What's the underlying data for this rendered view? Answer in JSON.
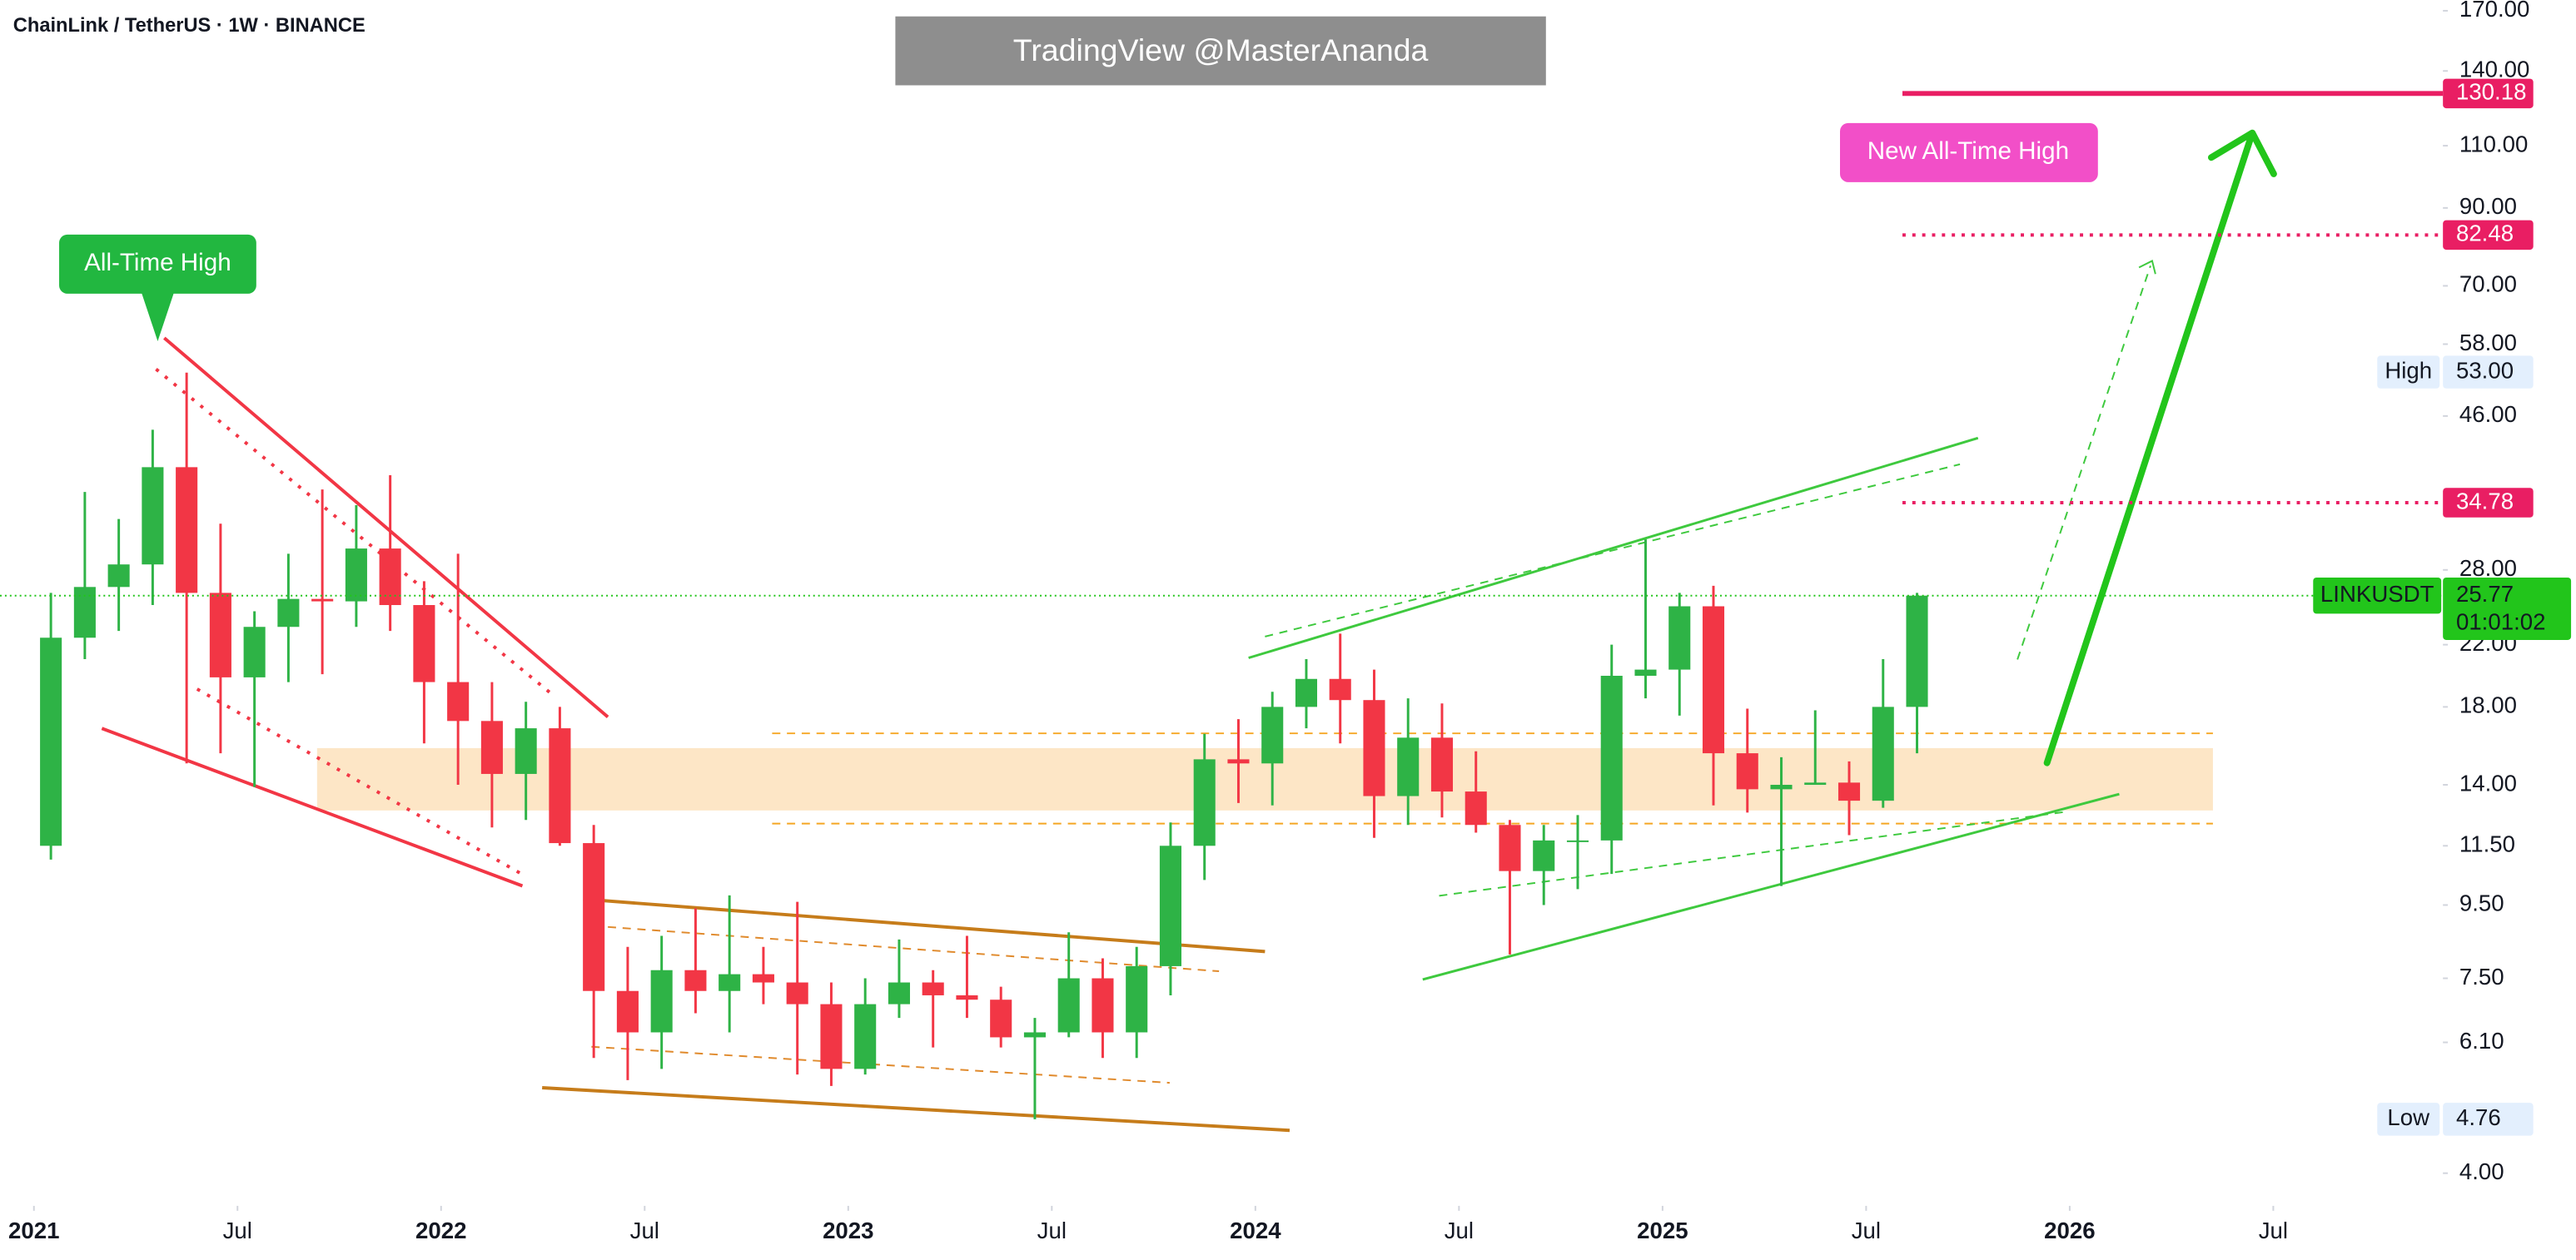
{
  "chart_data": {
    "type": "candlestick",
    "title": "ChainLink / TetherUS · 1W · BINANCE",
    "watermark": "TradingView @MasterAnanda",
    "annotations": [
      "All-Time High",
      "New All-Time High"
    ],
    "log_scale": true,
    "grid": false,
    "up_color": "#2eb346",
    "down_color": "#f23645",
    "x": [
      "2021-01",
      "2021-02",
      "2021-03",
      "2021-04",
      "2021-05",
      "2021-06",
      "2021-07",
      "2021-08",
      "2021-09",
      "2021-10",
      "2021-11",
      "2021-12",
      "2022-01",
      "2022-02",
      "2022-03",
      "2022-04",
      "2022-05",
      "2022-06",
      "2022-07",
      "2022-08",
      "2022-09",
      "2022-10",
      "2022-11",
      "2022-12",
      "2023-01",
      "2023-02",
      "2023-03",
      "2023-04",
      "2023-05",
      "2023-06",
      "2023-07",
      "2023-08",
      "2023-09",
      "2023-10",
      "2023-11",
      "2023-12",
      "2024-01",
      "2024-02",
      "2024-03",
      "2024-04",
      "2024-05",
      "2024-06",
      "2024-07",
      "2024-08",
      "2024-09",
      "2024-10",
      "2024-11",
      "2024-12",
      "2025-01",
      "2025-02",
      "2025-03",
      "2025-04",
      "2025-05",
      "2025-06",
      "2025-07",
      "2025-08"
    ],
    "open": [
      11.5,
      22.5,
      26.5,
      28.5,
      39.0,
      26.0,
      19.8,
      23.3,
      25.5,
      25.3,
      30.0,
      25.0,
      19.5,
      17.2,
      14.5,
      16.8,
      11.6,
      7.2,
      6.3,
      7.7,
      7.2,
      7.6,
      7.4,
      6.9,
      5.6,
      6.9,
      7.4,
      7.1,
      7.0,
      6.2,
      6.3,
      7.5,
      6.3,
      7.8,
      11.5,
      15.2,
      15.0,
      18.0,
      19.7,
      18.4,
      13.5,
      16.3,
      13.7,
      12.3,
      10.6,
      11.7,
      11.7,
      19.9,
      20.3,
      24.9,
      15.5,
      13.8,
      14.0,
      14.1,
      13.3,
      18.0
    ],
    "high": [
      26.0,
      36.0,
      33.0,
      44.0,
      52.9,
      32.5,
      24.5,
      29.5,
      36.3,
      34.5,
      38.0,
      27.0,
      29.5,
      19.5,
      18.3,
      18.0,
      12.3,
      8.3,
      8.6,
      9.4,
      9.8,
      8.3,
      9.6,
      7.4,
      7.5,
      8.5,
      7.7,
      8.6,
      7.3,
      6.6,
      8.7,
      8.0,
      8.3,
      12.4,
      16.5,
      17.3,
      18.9,
      21.0,
      22.8,
      20.3,
      18.5,
      18.2,
      15.6,
      12.5,
      12.3,
      12.7,
      22.0,
      30.9,
      26.0,
      26.6,
      17.9,
      15.3,
      17.8,
      15.1,
      21.0,
      26.0
    ],
    "low": [
      11.0,
      21.0,
      23.0,
      25.0,
      15.0,
      15.5,
      13.9,
      19.5,
      20.0,
      23.3,
      23.0,
      16.0,
      14.0,
      12.2,
      12.5,
      11.5,
      5.8,
      5.4,
      5.6,
      6.7,
      6.3,
      6.9,
      5.5,
      5.3,
      5.5,
      6.6,
      6.0,
      6.6,
      6.0,
      4.76,
      6.2,
      5.8,
      5.8,
      7.1,
      10.3,
      13.2,
      13.1,
      16.8,
      16.0,
      11.8,
      12.3,
      12.6,
      12.0,
      8.1,
      9.5,
      10.0,
      10.5,
      18.5,
      17.5,
      13.1,
      12.8,
      10.1,
      14.0,
      11.9,
      13.0,
      15.5
    ],
    "close": [
      22.5,
      26.5,
      28.5,
      39.0,
      26.0,
      19.8,
      23.3,
      25.5,
      25.3,
      30.0,
      25.0,
      19.5,
      17.2,
      14.5,
      16.8,
      11.6,
      7.2,
      6.3,
      7.7,
      7.2,
      7.6,
      7.4,
      6.9,
      5.6,
      6.9,
      7.4,
      7.1,
      7.0,
      6.2,
      6.3,
      7.5,
      6.3,
      7.8,
      11.5,
      15.2,
      15.0,
      18.0,
      19.7,
      18.4,
      13.5,
      16.3,
      13.7,
      12.3,
      10.6,
      11.7,
      11.7,
      19.9,
      20.3,
      24.9,
      15.5,
      13.8,
      14.0,
      14.1,
      13.3,
      18.0,
      25.77
    ],
    "xlim": [
      "2020-12",
      "2026-12"
    ],
    "xticks": [
      {
        "value": "2021-01",
        "label": "2021"
      },
      {
        "value": "2021-07",
        "label": "Jul"
      },
      {
        "value": "2022-01",
        "label": "2022"
      },
      {
        "value": "2022-07",
        "label": "Jul"
      },
      {
        "value": "2023-01",
        "label": "2023"
      },
      {
        "value": "2023-07",
        "label": "Jul"
      },
      {
        "value": "2024-01",
        "label": "2024"
      },
      {
        "value": "2024-07",
        "label": "Jul"
      },
      {
        "value": "2025-01",
        "label": "2025"
      },
      {
        "value": "2025-07",
        "label": "Jul"
      },
      {
        "value": "2026-01",
        "label": "2026"
      },
      {
        "value": "2026-07",
        "label": "Jul"
      }
    ],
    "ylim": [
      3.6,
      176
    ],
    "yticks": [
      {
        "value": 4,
        "label": "4.00"
      },
      {
        "value": 6.1,
        "label": "6.10"
      },
      {
        "value": 7.5,
        "label": "7.50"
      },
      {
        "value": 9.5,
        "label": "9.50"
      },
      {
        "value": 11.5,
        "label": "11.50"
      },
      {
        "value": 14,
        "label": "14.00"
      },
      {
        "value": 18,
        "label": "18.00"
      },
      {
        "value": 22,
        "label": "22.00"
      },
      {
        "value": 28,
        "label": "28.00"
      },
      {
        "value": 46,
        "label": "46.00"
      },
      {
        "value": 58,
        "label": "58.00"
      },
      {
        "value": 70,
        "label": "70.00"
      },
      {
        "value": 90,
        "label": "90.00"
      },
      {
        "value": 110,
        "label": "110.00"
      },
      {
        "value": 140,
        "label": "140.00"
      },
      {
        "value": 170,
        "label": "170.00"
      }
    ],
    "symbol": "LINKUSDT",
    "last_price": 25.77,
    "last_price_color": "#22c51b",
    "countdown": "01:01:02",
    "price_labels": [
      {
        "name": "High",
        "value": 53,
        "label": "53.00"
      },
      {
        "name": "Low",
        "value": 4.76,
        "label": "4.76"
      }
    ],
    "levels": [
      {
        "value": 130.18,
        "color": "#e91e63",
        "style": "solid"
      },
      {
        "value": 82.48,
        "color": "#e91e63",
        "style": "dotted"
      },
      {
        "value": 34.78,
        "color": "#e91e63",
        "style": "dotted"
      }
    ]
  }
}
